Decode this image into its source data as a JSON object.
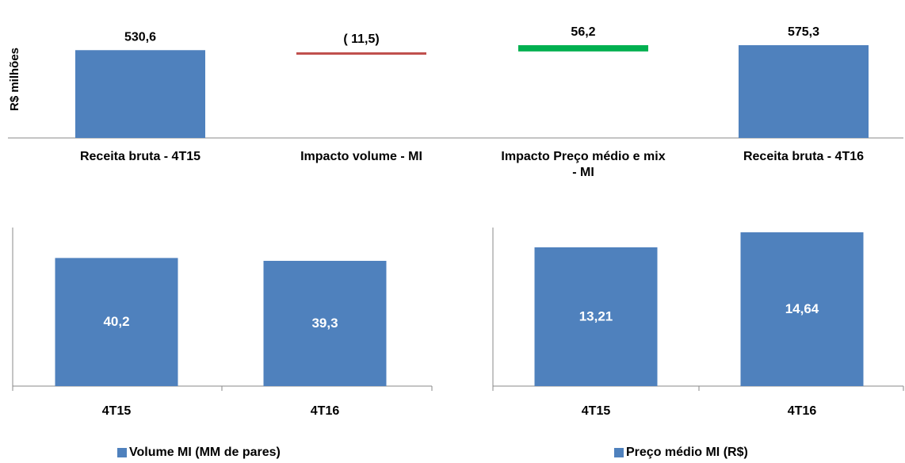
{
  "colors": {
    "bar": "#4f81bd",
    "negative": "#c0504d",
    "positive": "#00b050",
    "axis": "#888888"
  },
  "chart_data": [
    {
      "type": "bar",
      "subtype": "waterfall",
      "ylabel": "R$ milhões",
      "categories": [
        "Receita bruta - 4T15",
        "Impacto volume - MI",
        "Impacto Preço médio e mix - MI",
        "Receita bruta - 4T16"
      ],
      "category_lines": [
        [
          "Receita bruta - 4T15"
        ],
        [
          "Impacto volume - MI"
        ],
        [
          "Impacto Preço médio e mix",
          "- MI"
        ],
        [
          "Receita bruta - 4T16"
        ]
      ],
      "values": [
        530.6,
        -11.5,
        56.2,
        575.3
      ],
      "data_labels": [
        "530,6",
        "( 11,5)",
        "56,2",
        "575,3"
      ],
      "kinds": [
        "total",
        "decrease",
        "increase",
        "total"
      ]
    },
    {
      "type": "bar",
      "categories": [
        "4T15",
        "4T16"
      ],
      "series": [
        {
          "name": "Volume MI (MM de pares)",
          "values": [
            40.2,
            39.3
          ]
        }
      ],
      "data_labels": [
        "40,2",
        "39,3"
      ],
      "ylim": [
        0,
        50
      ]
    },
    {
      "type": "bar",
      "categories": [
        "4T15",
        "4T16"
      ],
      "series": [
        {
          "name": "Preço médio MI (R$)",
          "values": [
            13.21,
            14.64
          ]
        }
      ],
      "data_labels": [
        "13,21",
        "14,64"
      ],
      "ylim": [
        0,
        20
      ]
    }
  ]
}
